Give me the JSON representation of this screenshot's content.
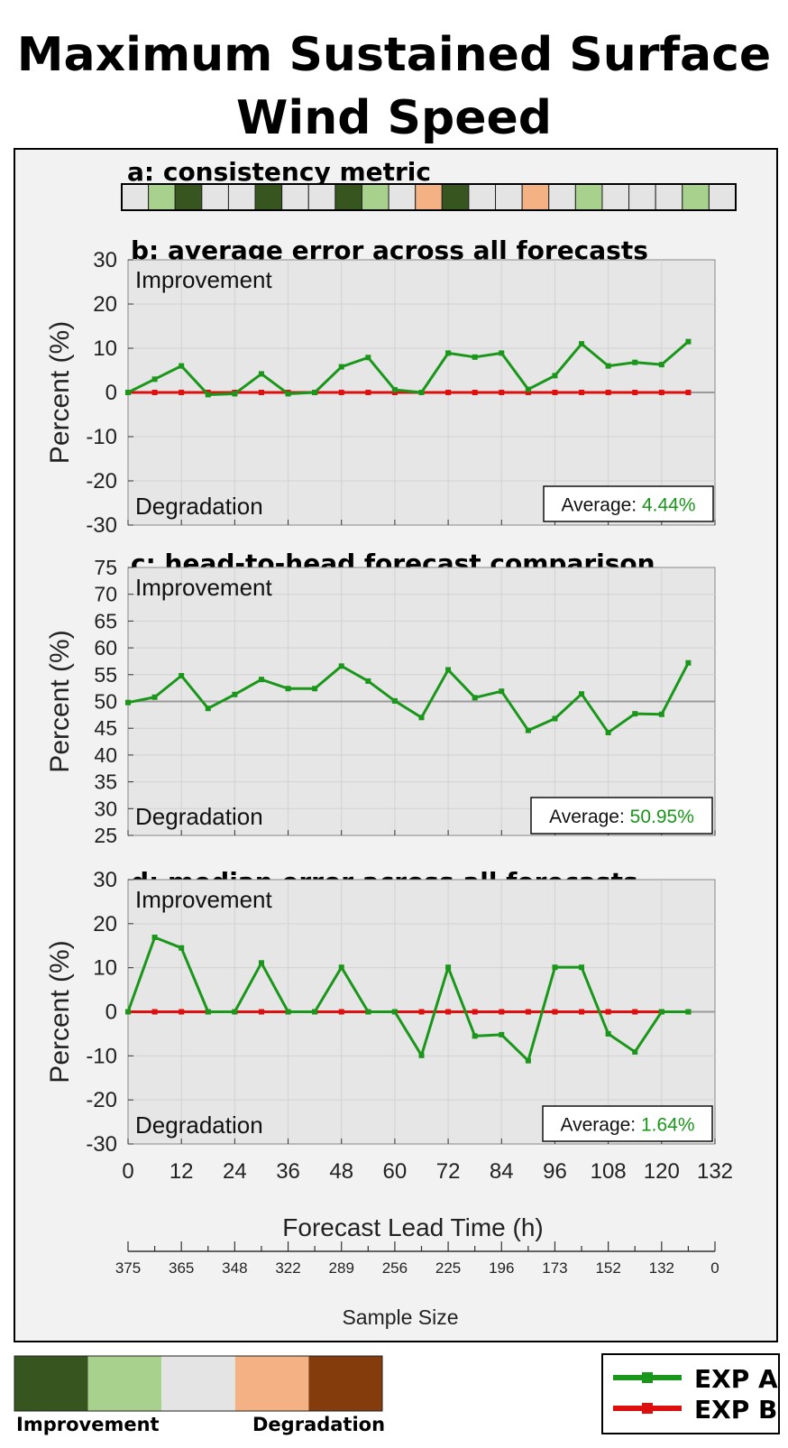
{
  "title_line1": "Maximum Sustained Surface",
  "title_line2": "Wind Speed",
  "chart_data": [
    {
      "type": "heatmap",
      "title": "a: consistency metric",
      "cells": [
        "neutral",
        "light-improvement",
        "improvement",
        "neutral",
        "neutral",
        "improvement",
        "neutral",
        "neutral",
        "improvement",
        "light-improvement",
        "neutral",
        "light-degradation",
        "improvement",
        "neutral",
        "neutral",
        "light-degradation",
        "neutral",
        "light-improvement",
        "neutral",
        "neutral",
        "neutral",
        "light-improvement",
        "neutral"
      ]
    },
    {
      "type": "line",
      "title": "b: average error across all forecasts",
      "ylabel": "Percent (%)",
      "ylim": [
        -30,
        30
      ],
      "yticks": [
        30,
        20,
        10,
        0,
        -10,
        -20,
        -30
      ],
      "xlim": [
        0,
        132
      ],
      "top_label": "Improvement",
      "bottom_label": "Degradation",
      "average_label": "Average: ",
      "average_value": "4.44%",
      "baseline": 0,
      "series": [
        {
          "name": "EXP A",
          "x": [
            0,
            6,
            12,
            18,
            24,
            30,
            36,
            42,
            48,
            54,
            60,
            66,
            72,
            78,
            84,
            90,
            96,
            102,
            108,
            114,
            120,
            126
          ],
          "values": [
            0,
            3,
            6,
            -0.5,
            -0.3,
            4.2,
            -0.3,
            0,
            5.8,
            7.9,
            0.6,
            0,
            8.9,
            8,
            8.9,
            0.7,
            3.8,
            11,
            6,
            6.8,
            6.3,
            11.5
          ]
        },
        {
          "name": "EXP B",
          "x": [
            0,
            6,
            12,
            18,
            24,
            30,
            36,
            42,
            48,
            54,
            60,
            66,
            72,
            78,
            84,
            90,
            96,
            102,
            108,
            114,
            120,
            126
          ],
          "values": [
            0,
            0,
            0,
            0,
            0,
            0,
            0,
            0,
            0,
            0,
            0,
            0,
            0,
            0,
            0,
            0,
            0,
            0,
            0,
            0,
            0,
            0
          ]
        }
      ]
    },
    {
      "type": "line",
      "title": "c: head-to-head forecast comparison",
      "ylabel": "Percent (%)",
      "ylim": [
        25,
        75
      ],
      "yticks": [
        75,
        70,
        65,
        60,
        55,
        50,
        45,
        40,
        35,
        30,
        25
      ],
      "xlim": [
        0,
        132
      ],
      "top_label": "Improvement",
      "bottom_label": "Degradation",
      "average_label": "Average: ",
      "average_value": "50.95%",
      "baseline": 50,
      "series": [
        {
          "name": "EXP A",
          "x": [
            0,
            6,
            12,
            18,
            24,
            30,
            36,
            42,
            48,
            54,
            60,
            66,
            72,
            78,
            84,
            90,
            96,
            102,
            108,
            114,
            120,
            126
          ],
          "values": [
            49.8,
            50.8,
            54.8,
            48.7,
            51.3,
            54.1,
            52.4,
            52.4,
            56.6,
            53.8,
            50.1,
            47,
            55.9,
            50.7,
            51.9,
            44.6,
            46.8,
            51.4,
            44.2,
            47.7,
            47.6,
            57.2
          ]
        }
      ]
    },
    {
      "type": "line",
      "title": "d: median error across all forecasts",
      "ylabel": "Percent (%)",
      "xlabel": "Forecast Lead Time (h)",
      "ylim": [
        -30,
        30
      ],
      "yticks": [
        30,
        20,
        10,
        0,
        -10,
        -20,
        -30
      ],
      "xlim": [
        0,
        132
      ],
      "xticks": [
        0,
        12,
        24,
        36,
        48,
        60,
        72,
        84,
        96,
        108,
        120,
        132
      ],
      "top_label": "Improvement",
      "bottom_label": "Degradation",
      "average_label": "Average: ",
      "average_value": "1.64%",
      "baseline": 0,
      "series": [
        {
          "name": "EXP A",
          "x": [
            0,
            6,
            12,
            18,
            24,
            30,
            36,
            42,
            48,
            54,
            60,
            66,
            72,
            78,
            84,
            90,
            96,
            102,
            108,
            114,
            120,
            126
          ],
          "values": [
            0,
            16.9,
            14.5,
            0,
            0,
            11.1,
            0,
            0,
            10.1,
            0,
            0,
            -9.9,
            10.1,
            -5.5,
            -5.2,
            -11.1,
            10.1,
            10.1,
            -5,
            -9.1,
            0,
            0
          ]
        },
        {
          "name": "EXP B",
          "x": [
            0,
            6,
            12,
            18,
            24,
            30,
            36,
            42,
            48,
            54,
            60,
            66,
            72,
            78,
            84,
            90,
            96,
            102,
            108,
            114,
            120,
            126
          ],
          "values": [
            0,
            0,
            0,
            0,
            0,
            0,
            0,
            0,
            0,
            0,
            0,
            0,
            0,
            0,
            0,
            0,
            0,
            0,
            0,
            0,
            0,
            0
          ]
        }
      ]
    },
    {
      "type": "axis",
      "title": "Sample Size",
      "tick_positions": [
        0,
        12,
        24,
        36,
        48,
        60,
        72,
        84,
        96,
        108,
        120,
        132
      ],
      "tick_labels": [
        "375",
        "365",
        "348",
        "322",
        "289",
        "256",
        "225",
        "196",
        "173",
        "152",
        "132",
        "0"
      ]
    }
  ],
  "colorbar": {
    "colors": [
      "#37561f",
      "#a9d18e",
      "#e4e4e4",
      "#f4b183",
      "#843c0c"
    ],
    "left_label": "Improvement",
    "right_label": "Degradation"
  },
  "legend": {
    "items": [
      {
        "name": "EXP A",
        "color": "#1a961a"
      },
      {
        "name": "EXP B",
        "color": "#dd0f0f"
      }
    ]
  },
  "colors": {
    "improvement": "#37561f",
    "light-improvement": "#a9d18e",
    "neutral": "#e4e4e4",
    "light-degradation": "#f4b183",
    "degradation": "#843c0c",
    "expA": "#1a961a",
    "expB": "#dd0f0f"
  }
}
